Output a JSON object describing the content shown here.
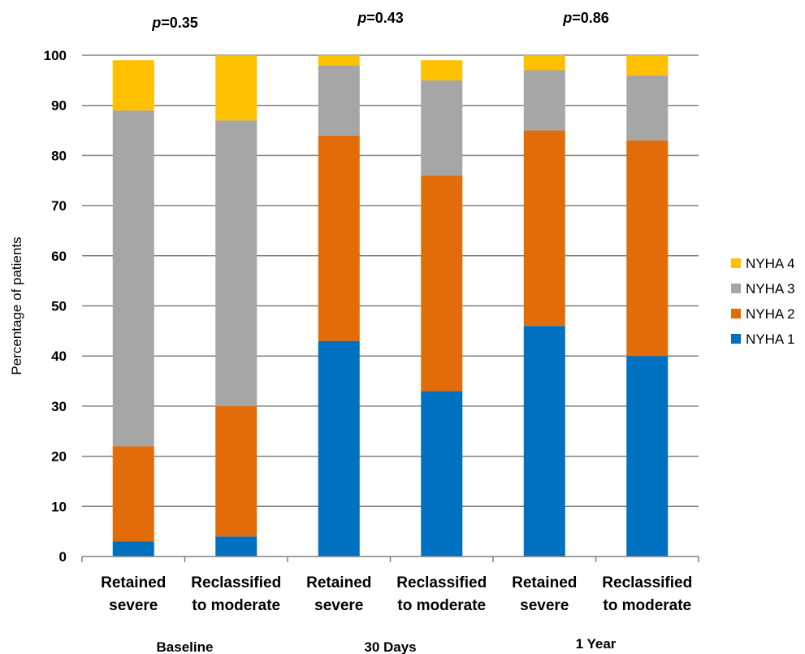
{
  "chart_data": {
    "type": "bar",
    "stacked": true,
    "ylabel": "Percentage of patients",
    "ylim": [
      0,
      100
    ],
    "yticks": [
      0,
      10,
      20,
      30,
      40,
      50,
      60,
      70,
      80,
      90,
      100
    ],
    "grid": true,
    "legend_position": "right",
    "categories": [
      [
        "Retained",
        "severe"
      ],
      [
        "Reclassified",
        "to moderate"
      ],
      [
        "Retained",
        "severe"
      ],
      [
        "Reclassified",
        "to moderate"
      ],
      [
        "Retained",
        "severe"
      ],
      [
        "Reclassified",
        "to moderate"
      ]
    ],
    "groups": [
      {
        "label": "Baseline",
        "p_prefix": "p",
        "p_value": "=0.35"
      },
      {
        "label": "30 Days",
        "p_prefix": "p",
        "p_value": "=0.43"
      },
      {
        "label": "1 Year",
        "p_prefix": "p",
        "p_value": "=0.86"
      }
    ],
    "series": [
      {
        "name": "NYHA 1",
        "color": "#0070C0",
        "values": [
          3,
          4,
          43,
          33,
          46,
          40
        ]
      },
      {
        "name": "NYHA 2",
        "color": "#E36C0A",
        "values": [
          19,
          26,
          41,
          43,
          39,
          43
        ]
      },
      {
        "name": "NYHA 3",
        "color": "#A6A6A6",
        "values": [
          67,
          57,
          14,
          19,
          12,
          13
        ]
      },
      {
        "name": "NYHA 4",
        "color": "#FFC000",
        "values": [
          10,
          13,
          2,
          4,
          3,
          4
        ]
      }
    ]
  }
}
